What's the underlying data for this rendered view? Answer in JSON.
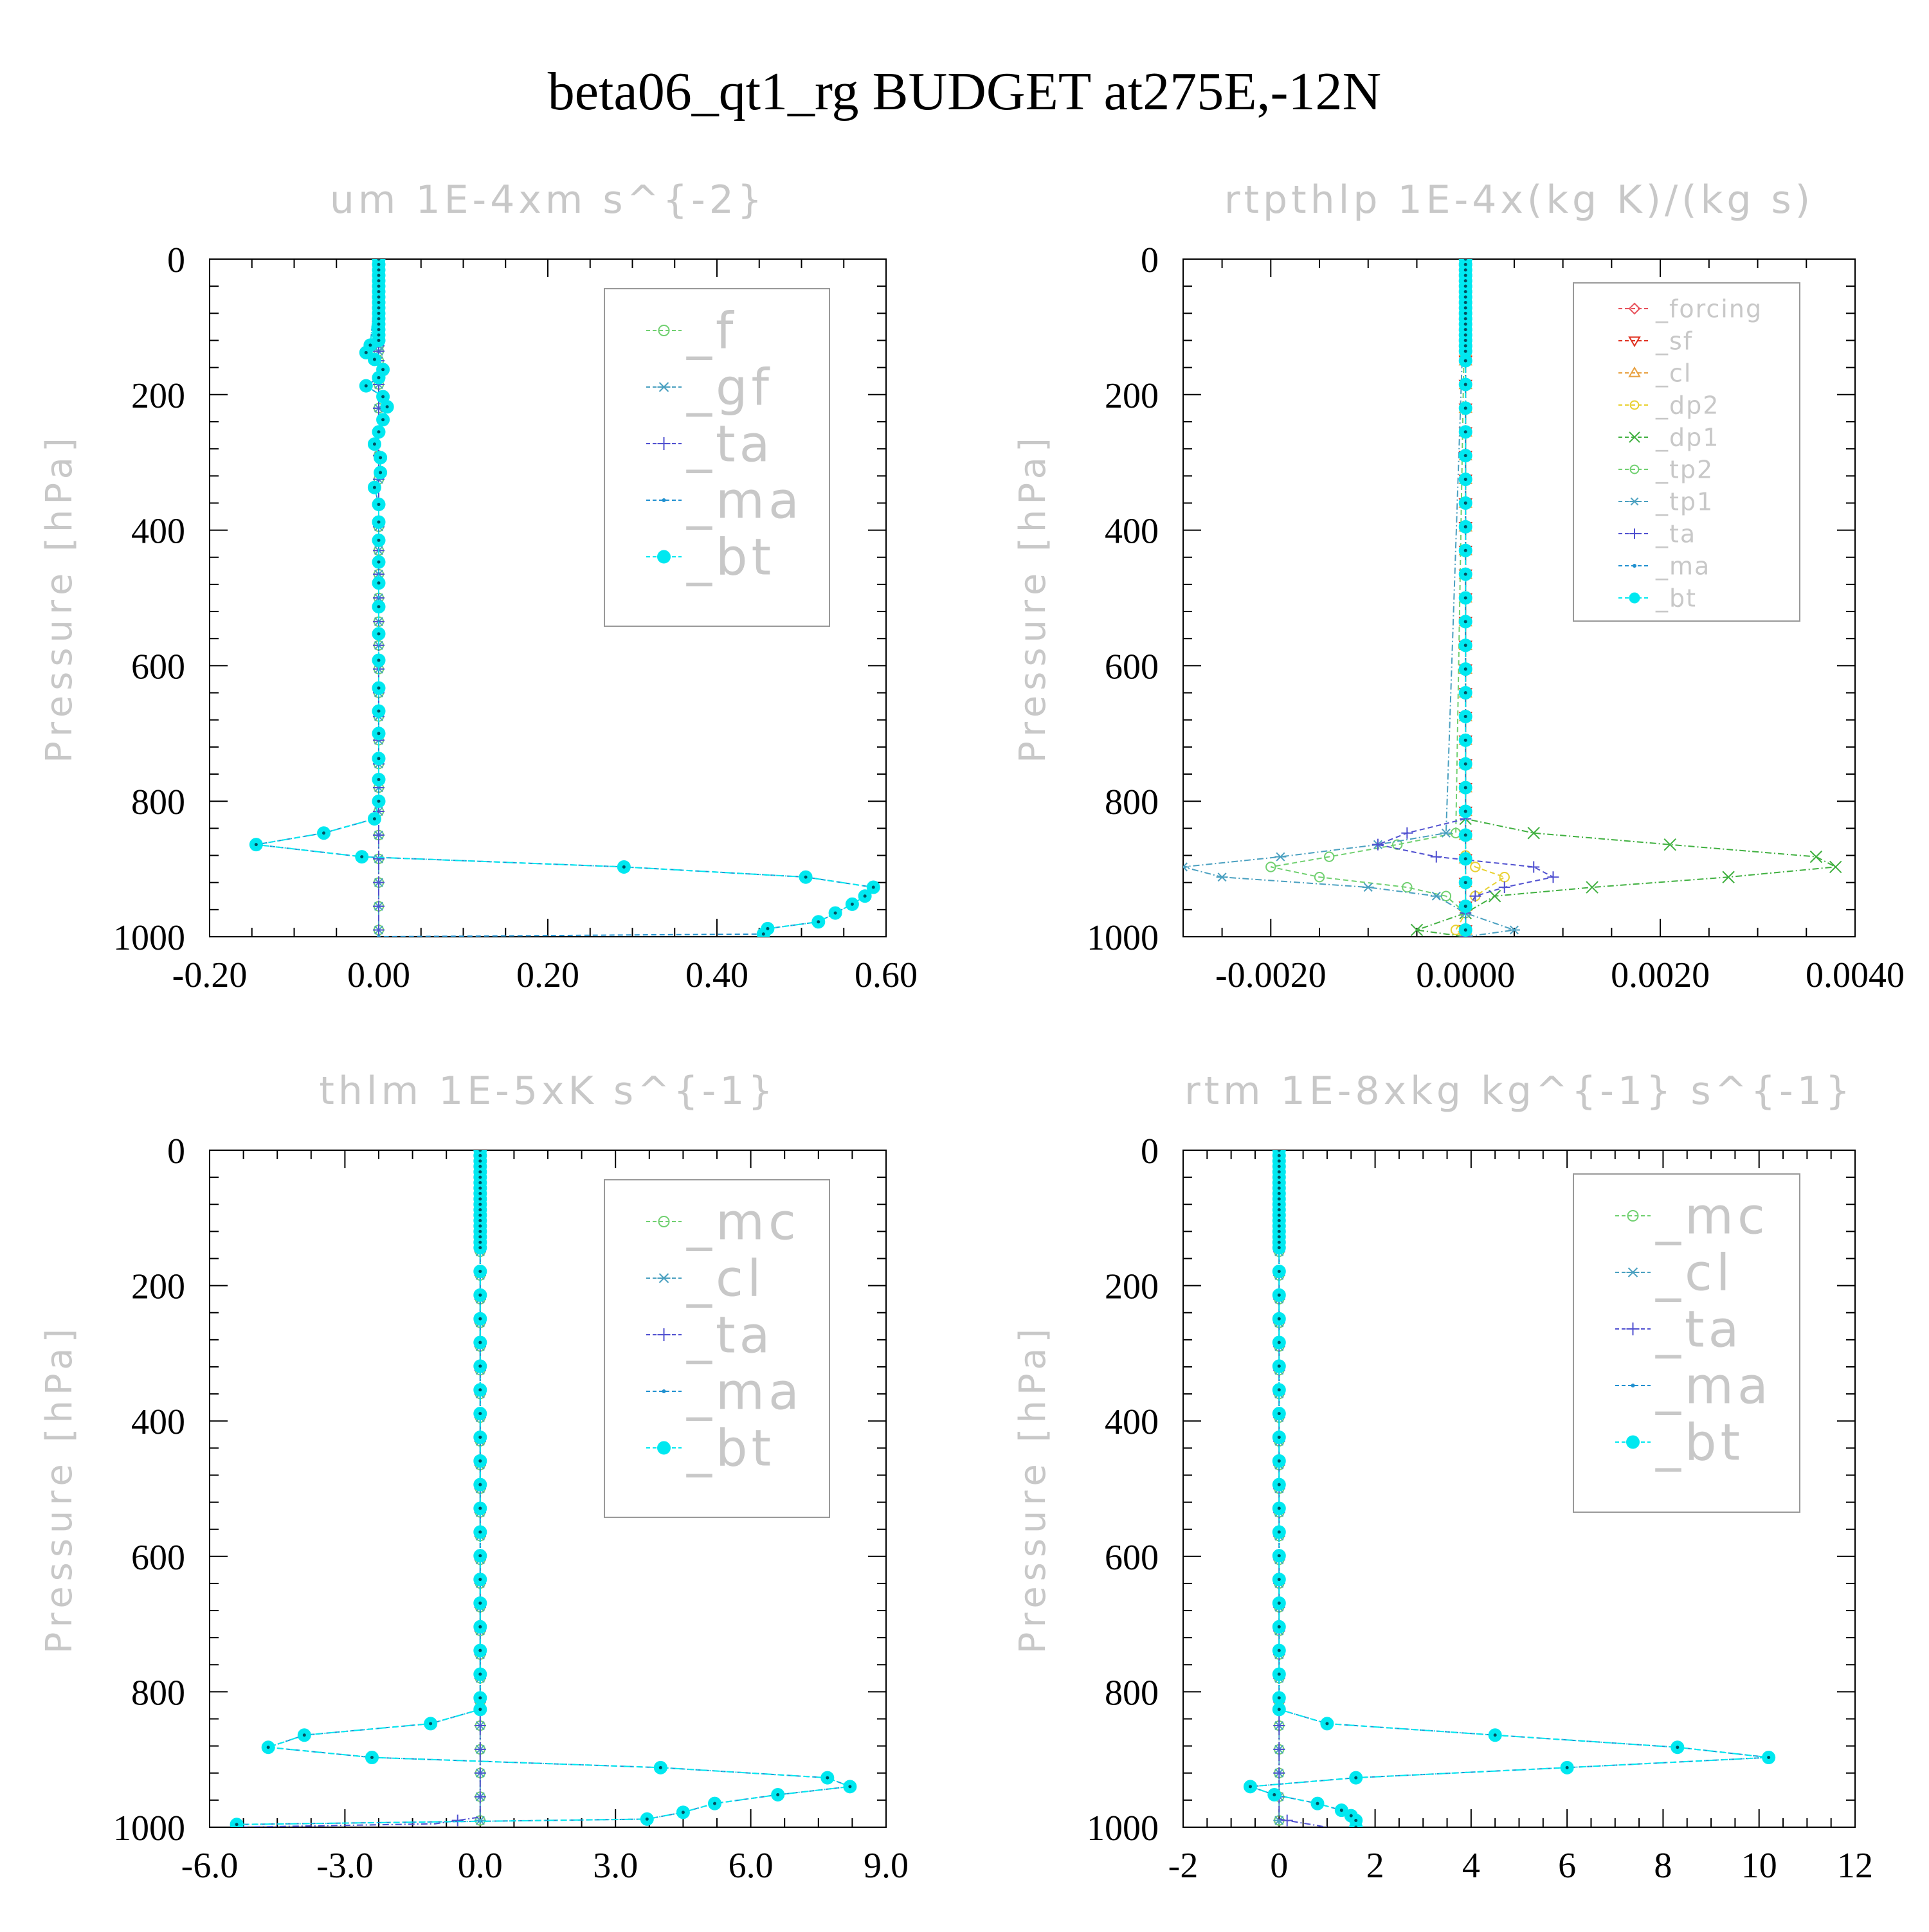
{
  "title": "beta06_qt1_rg  BUDGET at275E,-12N",
  "colors": {
    "axis": "#000000",
    "label_gray": "#c8c8c8",
    "forcing": "#e8505a",
    "sf": "#e03020",
    "cl_budget_tp": "#e8a040",
    "dp2": "#e8d030",
    "dp1": "#40b040",
    "f_mc_tp2": "#70d070",
    "gf_cl_tp1": "#4aa0c0",
    "ta": "#5050d0",
    "ma": "#2090d0",
    "bt": "#00e8f0"
  },
  "chart_data": [
    {
      "type": "line",
      "title": "um  1E-4xm s^{-2}",
      "ylabel": "Pressure [hPa]",
      "xlim": [
        -0.2,
        0.6
      ],
      "ylim": [
        0,
        1000
      ],
      "y_inverted": true,
      "x_ticks": [
        "-0.20",
        "0.00",
        "0.20",
        "0.40",
        "0.60"
      ],
      "y_ticks": [
        "0",
        "200",
        "400",
        "600",
        "800",
        "1000"
      ],
      "legend": [
        "_f",
        "_gf",
        "_ta",
        "_ma",
        "_bt"
      ],
      "series": [
        {
          "name": "_f",
          "p": [
            0,
            1000
          ],
          "values": [
            0.0,
            0.0
          ]
        },
        {
          "name": "_gf",
          "p": [
            0,
            1000
          ],
          "values": [
            0.0,
            0.0
          ]
        },
        {
          "name": "_ta",
          "p": [
            0,
            1000
          ],
          "values": [
            0.0,
            0.0
          ]
        },
        {
          "name": "_ma",
          "p": [
            0,
            127,
            138,
            148,
            163,
            175,
            187,
            203,
            218,
            237,
            255,
            273,
            293,
            315,
            337,
            362,
            388,
            415,
            447,
            478,
            513,
            553,
            592,
            633,
            667,
            700,
            737,
            768,
            800,
            826,
            847,
            864,
            882,
            897,
            912,
            927,
            940,
            952,
            965,
            978,
            988,
            996,
            1000
          ],
          "values": [
            0.0,
            -0.01,
            -0.015,
            -0.005,
            0.005,
            0.0,
            -0.015,
            0.005,
            0.01,
            0.005,
            0.0,
            -0.005,
            0.002,
            0.002,
            -0.005,
            0.0,
            0.0,
            0.0,
            0.0,
            0.0,
            0.0,
            0.0,
            0.0,
            0.0,
            0.0,
            0.0,
            0.0,
            0.0,
            0.0,
            -0.005,
            -0.065,
            -0.145,
            -0.02,
            0.29,
            0.505,
            0.585,
            0.575,
            0.56,
            0.54,
            0.52,
            0.46,
            0.455,
            0.0
          ]
        },
        {
          "name": "_bt",
          "p": [
            0,
            127,
            138,
            148,
            163,
            175,
            187,
            203,
            218,
            237,
            255,
            273,
            293,
            315,
            337,
            362,
            388,
            415,
            447,
            478,
            513,
            553,
            592,
            633,
            667,
            700,
            737,
            768,
            800,
            826,
            847,
            864,
            882,
            897,
            912,
            927,
            940,
            952,
            965,
            978,
            988,
            996
          ],
          "values": [
            0.0,
            -0.01,
            -0.015,
            -0.005,
            0.005,
            0.0,
            -0.015,
            0.005,
            0.01,
            0.005,
            0.0,
            -0.005,
            0.002,
            0.002,
            -0.005,
            0.0,
            0.0,
            0.0,
            0.0,
            0.0,
            0.0,
            0.0,
            0.0,
            0.0,
            0.0,
            0.0,
            0.0,
            0.0,
            0.0,
            -0.005,
            -0.065,
            -0.145,
            -0.02,
            0.29,
            0.505,
            0.585,
            0.575,
            0.56,
            0.54,
            0.52,
            0.46,
            0.455
          ]
        }
      ]
    },
    {
      "type": "line",
      "title": "rtpthlp  1E-4x(kg K)/(kg s)",
      "ylabel": "Pressure [hPa]",
      "xlim": [
        -0.0029,
        0.004
      ],
      "ylim": [
        0,
        1000
      ],
      "y_inverted": true,
      "x_ticks": [
        "-0.0020",
        "0.0000",
        "0.0020",
        "0.0040"
      ],
      "y_ticks": [
        "0",
        "200",
        "400",
        "600",
        "800",
        "1000"
      ],
      "legend": [
        "_forcing",
        "_sf",
        "_cl",
        "_dp2",
        "_dp1",
        "_tp2",
        "_tp1",
        "_ta",
        "_ma",
        "_bt"
      ],
      "series": [
        {
          "name": "_forcing",
          "p": [
            0,
            1000
          ],
          "values": [
            0.0,
            0.0
          ]
        },
        {
          "name": "_sf",
          "p": [
            0,
            1000
          ],
          "values": [
            0.0,
            0.0
          ]
        },
        {
          "name": "_cl",
          "p": [
            0,
            1000
          ],
          "values": [
            0.0,
            0.0
          ]
        },
        {
          "name": "_dp2",
          "p": [
            0,
            880,
            897,
            912,
            940,
            965,
            990,
            1000
          ],
          "values": [
            0.0,
            0.0,
            0.0001,
            0.0004,
            0.0001,
            0.0,
            -0.0001,
            0.0
          ]
        },
        {
          "name": "_dp1",
          "p": [
            0,
            826,
            847,
            864,
            882,
            897,
            912,
            927,
            940,
            965,
            990,
            1000
          ],
          "values": [
            0.0,
            0.0,
            0.0007,
            0.0021,
            0.0036,
            0.0038,
            0.0027,
            0.0013,
            0.0003,
            0.0,
            -0.0005,
            0.0
          ]
        },
        {
          "name": "_tp2",
          "p": [
            0,
            847,
            864,
            882,
            897,
            912,
            927,
            940,
            965,
            1000
          ],
          "values": [
            0.0,
            -0.0001,
            -0.0007,
            -0.0014,
            -0.002,
            -0.0015,
            -0.0006,
            -0.0002,
            0.0,
            0.0
          ]
        },
        {
          "name": "_tp1",
          "p": [
            0,
            847,
            864,
            882,
            897,
            912,
            927,
            940,
            965,
            990,
            1000
          ],
          "values": [
            0.0,
            -0.0002,
            -0.0009,
            -0.0019,
            -0.0029,
            -0.0025,
            -0.001,
            -0.0003,
            0.0,
            0.0005,
            0.0
          ]
        },
        {
          "name": "_ta",
          "p": [
            0,
            826,
            847,
            864,
            882,
            897,
            912,
            927,
            940,
            965,
            1000
          ],
          "values": [
            0.0,
            0.0,
            -0.0006,
            -0.0009,
            -0.0003,
            0.0007,
            0.0009,
            0.0004,
            0.0001,
            0.0,
            0.0
          ]
        },
        {
          "name": "_ma",
          "p": [
            0,
            1000
          ],
          "values": [
            0.0,
            0.0
          ]
        },
        {
          "name": "_bt",
          "p": [
            0,
            1000
          ],
          "values": [
            0.0,
            0.0
          ]
        }
      ]
    },
    {
      "type": "line",
      "title": "thlm  1E-5xK s^{-1}",
      "ylabel": "Pressure [hPa]",
      "xlim": [
        -6.0,
        9.0
      ],
      "ylim": [
        0,
        1000
      ],
      "y_inverted": true,
      "x_ticks": [
        "-6.0",
        "-3.0",
        "0.0",
        "3.0",
        "6.0",
        "9.0"
      ],
      "y_ticks": [
        "0",
        "200",
        "400",
        "600",
        "800",
        "1000"
      ],
      "legend": [
        "_mc",
        "_cl",
        "_ta",
        "_ma",
        "_bt"
      ],
      "series": [
        {
          "name": "_mc",
          "p": [
            0,
            1000
          ],
          "values": [
            0.0,
            0.0
          ]
        },
        {
          "name": "_cl",
          "p": [
            0,
            1000
          ],
          "values": [
            0.0,
            0.0
          ]
        },
        {
          "name": "_ta",
          "p": [
            0,
            985,
            995,
            1000
          ],
          "values": [
            0.0,
            0.0,
            -1.0,
            -5.4
          ]
        },
        {
          "name": "_ma",
          "p": [
            0,
            826,
            847,
            864,
            882,
            897,
            912,
            927,
            940,
            952,
            965,
            978,
            988,
            996
          ],
          "values": [
            0.0,
            0.0,
            -1.1,
            -3.9,
            -4.7,
            -2.4,
            4.0,
            7.7,
            8.2,
            6.6,
            5.2,
            4.5,
            3.7,
            -5.4
          ]
        },
        {
          "name": "_bt",
          "p": [
            0,
            826,
            847,
            864,
            882,
            897,
            912,
            927,
            940,
            952,
            965,
            978,
            988,
            996
          ],
          "values": [
            0.0,
            0.0,
            -1.1,
            -3.9,
            -4.7,
            -2.4,
            4.0,
            7.7,
            8.2,
            6.6,
            5.2,
            4.5,
            3.7,
            -5.4
          ]
        }
      ]
    },
    {
      "type": "line",
      "title": "rtm  1E-8xkg kg^{-1} s^{-1}",
      "ylabel": "Pressure [hPa]",
      "xlim": [
        -2,
        12
      ],
      "ylim": [
        0,
        1000
      ],
      "y_inverted": true,
      "x_ticks": [
        "-2",
        "0",
        "2",
        "4",
        "6",
        "8",
        "10",
        "12"
      ],
      "y_ticks": [
        "0",
        "200",
        "400",
        "600",
        "800",
        "1000"
      ],
      "legend": [
        "_mc",
        "_cl",
        "_ta",
        "_ma",
        "_bt"
      ],
      "series": [
        {
          "name": "_mc",
          "p": [
            0,
            1000
          ],
          "values": [
            0.0,
            0.0
          ]
        },
        {
          "name": "_cl",
          "p": [
            0,
            1000
          ],
          "values": [
            0.0,
            0.0
          ]
        },
        {
          "name": "_ta",
          "p": [
            0,
            988,
            1000
          ],
          "values": [
            0.0,
            0.0,
            1.0
          ]
        },
        {
          "name": "_ma",
          "p": [
            0,
            826,
            847,
            864,
            882,
            897,
            912,
            927,
            940,
            952,
            965,
            975,
            983,
            990,
            1000
          ],
          "values": [
            0.0,
            0.0,
            1.0,
            4.5,
            8.3,
            10.2,
            6.0,
            1.6,
            -0.6,
            -0.1,
            0.8,
            1.3,
            1.5,
            1.6,
            1.6
          ]
        },
        {
          "name": "_bt",
          "p": [
            0,
            826,
            847,
            864,
            882,
            897,
            912,
            927,
            940,
            952,
            965,
            975,
            983,
            990,
            1000
          ],
          "values": [
            0.0,
            0.0,
            1.0,
            4.5,
            8.3,
            10.2,
            6.0,
            1.6,
            -0.6,
            -0.1,
            0.8,
            1.3,
            1.5,
            1.6,
            1.6
          ]
        }
      ]
    }
  ]
}
